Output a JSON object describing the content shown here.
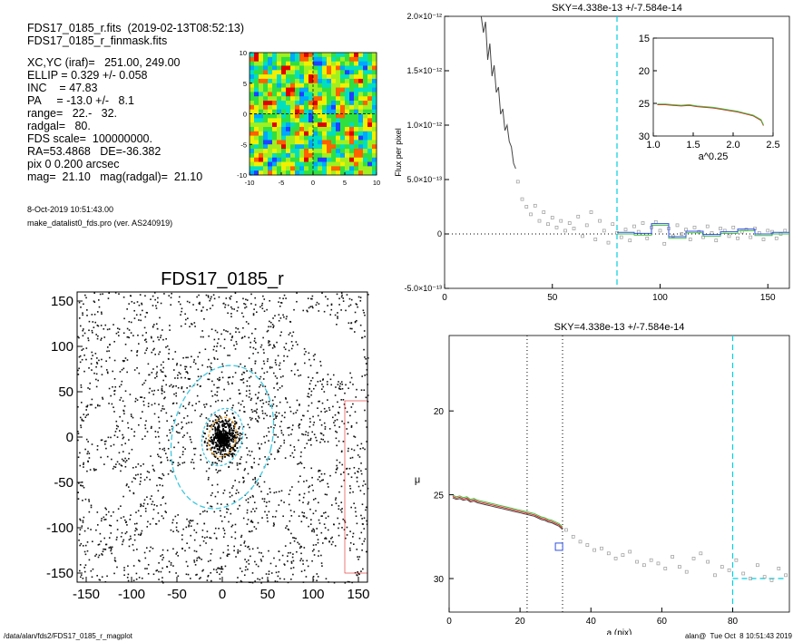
{
  "info": {
    "lines": [
      "FDS17_0185_r.fits  (2019-02-13T08:52:13)",
      "FDS17_0185_r_finmask.fits",
      "XC,YC (iraf)=   251.00, 249.00",
      "ELLIP = 0.329 +/- 0.058",
      "INC    = 47.83",
      "PA     = -13.0 +/-   8.1",
      "range=   22.-   32.",
      "radgal=   80.",
      "FDS scale=  100000000.",
      "RA=53.4868   DE=-36.382",
      "pix 0 0.200 arcsec",
      "mag=  21.10   mag(radgal)=  21.10"
    ],
    "date": "8-Oct-2019 10:51:43.00",
    "program": "make_datalist0_fds.pro (ver. AS240919)"
  },
  "footer": {
    "path": "/data/alan/fds2/FDS17_0185_r_magplot",
    "user": "alan@  Tue Oct  8 10:51:43 2019"
  },
  "colors": {
    "profile": "#444444",
    "sky_points": "#999999",
    "sky_line": "#00d0e0",
    "green": "#40c040",
    "red": "#e02020",
    "blue": "#3050e0",
    "ellipse": "#40c8e0"
  },
  "chart_data": [
    {
      "name": "residual_map",
      "type": "heatmap",
      "xlim": [
        -10,
        10
      ],
      "ylim": [
        -10,
        10
      ],
      "xticks": [
        "-10",
        "-5",
        "0",
        "5",
        "10"
      ],
      "yticks": [
        "-10",
        "-5",
        "0",
        "5",
        "10"
      ],
      "colormap": [
        "#2040ff",
        "#00a8ff",
        "#00e0c0",
        "#30e040",
        "#a0f020",
        "#f0f000",
        "#ff6000",
        "#e00000"
      ]
    },
    {
      "name": "galaxy_image",
      "type": "image",
      "title": "FDS17_0185_r",
      "xlim": [
        -160,
        160
      ],
      "ylim": [
        -160,
        160
      ],
      "xticks": [
        "-150",
        "-100",
        "-50",
        "0",
        "50",
        "100",
        "150"
      ],
      "yticks": [
        "150",
        "100",
        "50",
        "0",
        "-50",
        "-100",
        "-150"
      ],
      "ellipses": [
        {
          "a": 80,
          "b": 55,
          "pa": -13
        },
        {
          "a": 32,
          "b": 22,
          "pa": -13
        },
        {
          "a": 22,
          "b": 15,
          "pa": -13
        }
      ]
    },
    {
      "name": "sky_profile",
      "type": "line",
      "title": "SKY=4.338e-13 +/-7.584e-14",
      "ylabel": "Flux per pixel",
      "xlim": [
        0,
        160
      ],
      "ylim": [
        -5e-13,
        2e-12
      ],
      "xticks": [
        "0",
        "50",
        "100",
        "150"
      ],
      "yticks": [
        "-5.0×10⁻¹³",
        "0",
        "5.0×10⁻¹³",
        "1.0×10⁻¹²",
        "1.5×10⁻¹²",
        "2.0×10⁻¹²"
      ],
      "sky_radius": 80,
      "profile": {
        "x": [
          17,
          18,
          19,
          20,
          21,
          22,
          23,
          24,
          25,
          26,
          27,
          28,
          29,
          30,
          31,
          32,
          33
        ],
        "y": [
          2e-12,
          1.85e-12,
          1.95e-12,
          1.6e-12,
          1.75e-12,
          1.45e-12,
          1.55e-12,
          1.3e-12,
          1.35e-12,
          1.1e-12,
          1.15e-12,
          9.5e-13,
          1e-12,
          8.5e-13,
          8e-13,
          6.5e-13,
          6e-13
        ]
      },
      "points": {
        "x": [
          34,
          36,
          38,
          40,
          42,
          44,
          46,
          48,
          50,
          52,
          54,
          56,
          58,
          60,
          62,
          64,
          66,
          68,
          70,
          72,
          74,
          76,
          78,
          80,
          82,
          84,
          86,
          88,
          90,
          92,
          94,
          96,
          98,
          100,
          102,
          104,
          106,
          108,
          110,
          112,
          114,
          116,
          118,
          120,
          122,
          124,
          126,
          128,
          130,
          132,
          134,
          136,
          138,
          140,
          142,
          144,
          146,
          148,
          150,
          152,
          154,
          156,
          158
        ],
        "y": [
          4.8e-13,
          3.2e-13,
          2.5e-13,
          1.8e-13,
          2.6e-13,
          1.2e-13,
          2e-13,
          9e-14,
          1.5e-13,
          6e-14,
          1.2e-13,
          3e-14,
          1e-13,
          5e-14,
          1.6e-13,
          -2e-14,
          8e-14,
          2e-13,
          -5e-14,
          1.2e-13,
          3e-14,
          -8e-14,
          9e-14,
          1e-14,
          -3e-14,
          4e-14,
          -6e-14,
          7e-14,
          2e-14,
          1e-13,
          -4e-14,
          6e-14,
          1.1e-13,
          3e-14,
          -9e-14,
          5e-14,
          -2e-14,
          8e-14,
          0.0,
          4e-14,
          -5e-14,
          6e-14,
          2e-14,
          -3e-14,
          7e-14,
          1e-14,
          -6e-14,
          5e-14,
          3e-14,
          -2e-14,
          6e-14,
          -4e-14,
          2e-14,
          4e-14,
          -3e-14,
          5e-14,
          1e-14,
          -5e-14,
          3e-14,
          2e-14,
          -4e-14,
          0.0,
          3e-14
        ]
      },
      "steps": {
        "edges": [
          80,
          88,
          96,
          104,
          112,
          120,
          128,
          136,
          144,
          152,
          160
        ],
        "values": [
          0.0,
          -1e-14,
          8e-14,
          -4e-14,
          1e-14,
          -2e-14,
          5e-15,
          3e-14,
          -1.5e-14,
          0.0
        ]
      },
      "inset": {
        "xlabel": "a^0.25",
        "xlim": [
          1.0,
          2.5
        ],
        "ylim": [
          15,
          30
        ],
        "xticks": [
          "1.0",
          "1.5",
          "2.0",
          "2.5"
        ],
        "yticks": [
          "15",
          "20",
          "25",
          "30"
        ],
        "x": [
          1.05,
          1.15,
          1.25,
          1.35,
          1.45,
          1.55,
          1.65,
          1.75,
          1.85,
          1.95,
          2.05,
          2.15,
          2.25,
          2.35,
          2.38
        ],
        "y": [
          25.2,
          25.2,
          25.3,
          25.4,
          25.3,
          25.5,
          25.6,
          25.7,
          25.9,
          26.1,
          26.3,
          26.6,
          26.9,
          27.6,
          28.4
        ]
      }
    },
    {
      "name": "surface_brightness",
      "type": "scatter",
      "title": "SKY=4.338e-13 +/-7.584e-14",
      "xlabel": "a (pix)",
      "ylabel": "μ",
      "xlim": [
        0,
        96
      ],
      "ylim": [
        15.5,
        32
      ],
      "xticks": [
        "0",
        "20",
        "40",
        "60",
        "80"
      ],
      "yticks": [
        "20",
        "25",
        "30"
      ],
      "range_lines": [
        22,
        32
      ],
      "sky_radius": 80,
      "sky_level": 30.0,
      "profile": {
        "x": [
          1,
          2,
          3,
          4,
          5,
          6,
          7,
          8,
          9,
          10,
          11,
          12,
          13,
          14,
          15,
          16,
          17,
          18,
          19,
          20,
          21,
          22,
          23,
          24,
          25,
          26,
          27,
          28,
          29,
          30,
          31,
          32
        ],
        "y": [
          25.1,
          25.2,
          25.15,
          25.25,
          25.2,
          25.35,
          25.3,
          25.4,
          25.45,
          25.5,
          25.55,
          25.6,
          25.65,
          25.7,
          25.75,
          25.8,
          25.85,
          25.9,
          25.95,
          26.0,
          26.05,
          26.1,
          26.15,
          26.2,
          26.3,
          26.4,
          26.45,
          26.55,
          26.6,
          26.7,
          26.8,
          27.0
        ]
      },
      "points": {
        "x": [
          33,
          35,
          37,
          39,
          41,
          43,
          45,
          47,
          49,
          51,
          53,
          55,
          57,
          59,
          61,
          63,
          65,
          67,
          69,
          71,
          73,
          75,
          77,
          79,
          81,
          83,
          85,
          87,
          89,
          91,
          93,
          95
        ],
        "y": [
          27.1,
          27.5,
          27.8,
          28.0,
          28.3,
          28.2,
          28.5,
          28.8,
          28.6,
          28.4,
          29.0,
          29.2,
          28.9,
          29.1,
          29.4,
          28.7,
          29.3,
          29.6,
          28.8,
          28.5,
          29.0,
          29.8,
          29.3,
          29.5,
          28.9,
          29.7,
          30.0,
          29.2,
          29.9,
          30.1,
          29.4,
          29.8
        ]
      },
      "marker": {
        "x": 31,
        "y": 28.1
      }
    }
  ]
}
